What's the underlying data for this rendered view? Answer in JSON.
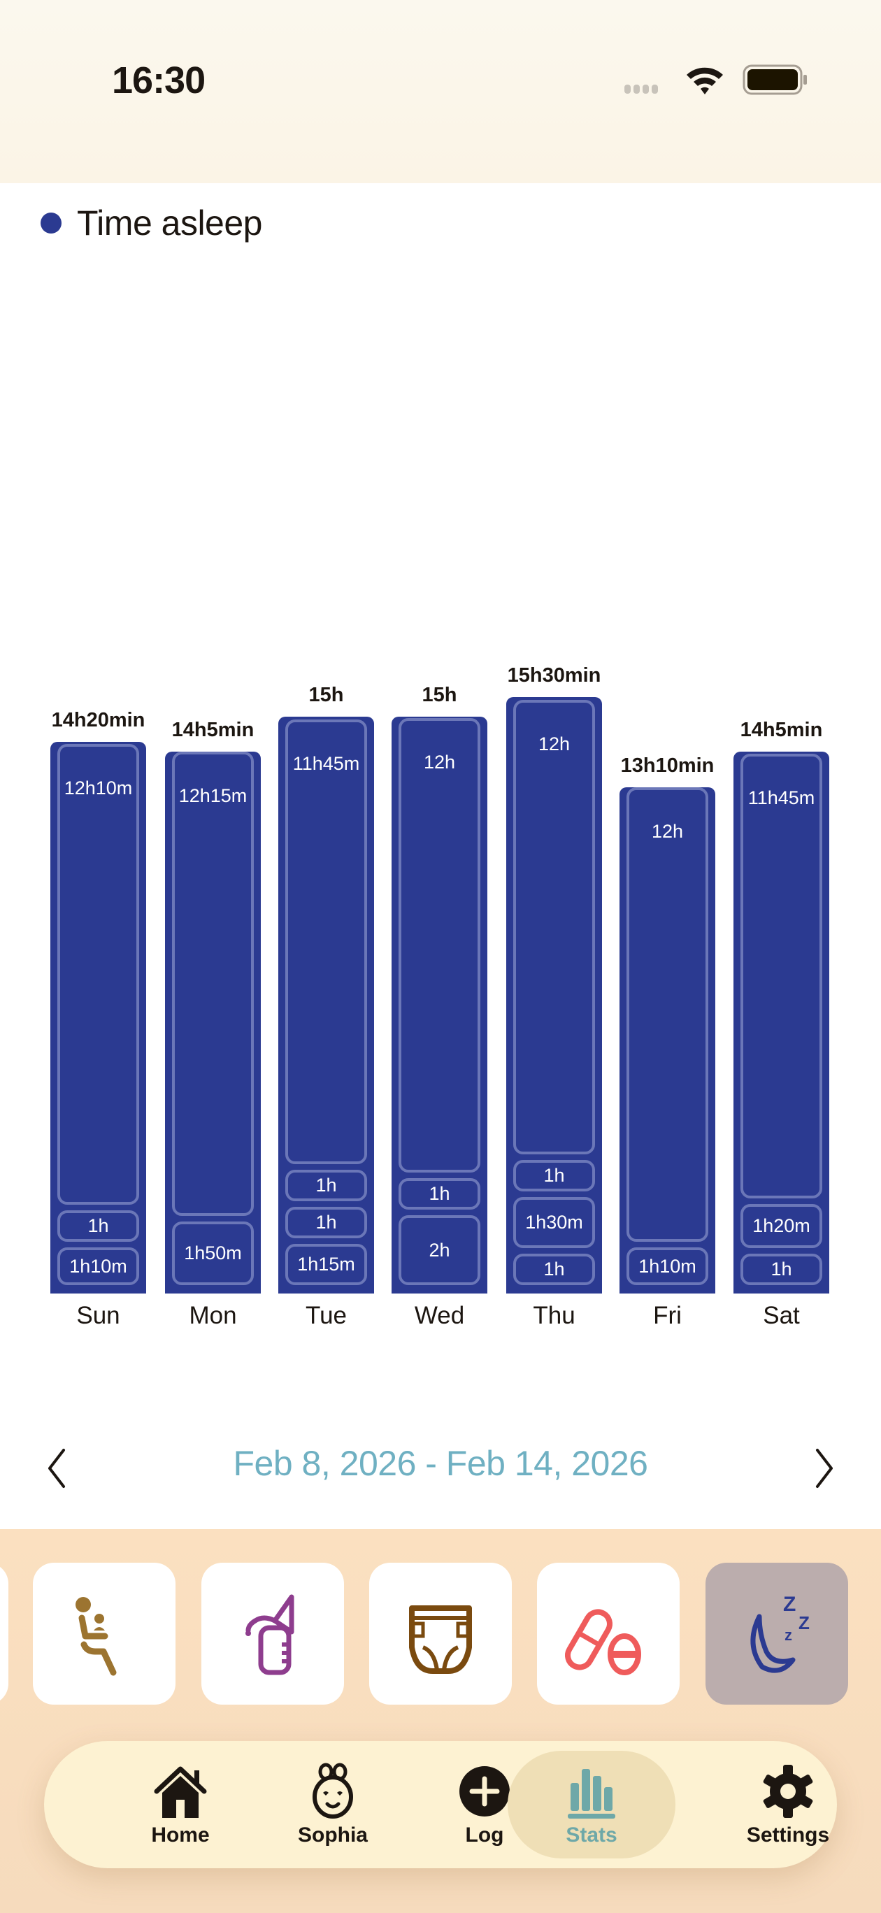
{
  "status_bar": {
    "time": "16:30"
  },
  "legend": {
    "label": "Time asleep",
    "color": "#2b3a91"
  },
  "chart_data": {
    "type": "bar",
    "stacked": true,
    "title": "",
    "legend": [
      "Time asleep"
    ],
    "categories": [
      "Sun",
      "Mon",
      "Tue",
      "Wed",
      "Thu",
      "Fri",
      "Sat"
    ],
    "totals": [
      "14h20min",
      "14h5min",
      "15h",
      "15h",
      "15h30min",
      "13h10min",
      "14h5min"
    ],
    "total_minutes": [
      860,
      845,
      900,
      900,
      930,
      790,
      845
    ],
    "segments_top_to_bottom": [
      [
        "12h10m",
        "1h",
        "1h10m"
      ],
      [
        "12h15m",
        "1h50m"
      ],
      [
        "11h45m",
        "1h",
        "1h",
        "1h15m"
      ],
      [
        "12h",
        "1h",
        "2h"
      ],
      [
        "12h",
        "1h",
        "1h30m",
        "1h"
      ],
      [
        "12h",
        "1h10m"
      ],
      [
        "11h45m",
        "1h20m",
        "1h"
      ]
    ],
    "segment_minutes_top_to_bottom": [
      [
        730,
        60,
        70
      ],
      [
        735,
        110
      ],
      [
        705,
        60,
        60,
        75
      ],
      [
        720,
        60,
        120
      ],
      [
        720,
        60,
        90,
        60
      ],
      [
        720,
        70
      ],
      [
        705,
        80,
        60
      ]
    ],
    "xlabel": "",
    "ylabel": "",
    "grid": false,
    "bar_color": "#2b3a91"
  },
  "days": [
    {
      "label": "Sun",
      "total": "14h20min",
      "segments": [
        {
          "label": "12h10m",
          "min": 730
        },
        {
          "label": "1h",
          "min": 60
        },
        {
          "label": "1h10m",
          "min": 70
        }
      ]
    },
    {
      "label": "Mon",
      "total": "14h5min",
      "segments": [
        {
          "label": "12h15m",
          "min": 735
        },
        {
          "label": "1h50m",
          "min": 110
        }
      ]
    },
    {
      "label": "Tue",
      "total": "15h",
      "segments": [
        {
          "label": "11h45m",
          "min": 705
        },
        {
          "label": "1h",
          "min": 60
        },
        {
          "label": "1h",
          "min": 60
        },
        {
          "label": "1h15m",
          "min": 75
        }
      ]
    },
    {
      "label": "Wed",
      "total": "15h",
      "segments": [
        {
          "label": "12h",
          "min": 720
        },
        {
          "label": "1h",
          "min": 60
        },
        {
          "label": "2h",
          "min": 120
        }
      ]
    },
    {
      "label": "Thu",
      "total": "15h30min",
      "segments": [
        {
          "label": "12h",
          "min": 720
        },
        {
          "label": "1h",
          "min": 60
        },
        {
          "label": "1h30m",
          "min": 90
        },
        {
          "label": "1h",
          "min": 60
        }
      ]
    },
    {
      "label": "Fri",
      "total": "13h10min",
      "segments": [
        {
          "label": "12h",
          "min": 720
        },
        {
          "label": "1h10m",
          "min": 70
        }
      ]
    },
    {
      "label": "Sat",
      "total": "14h5min",
      "segments": [
        {
          "label": "11h45m",
          "min": 705
        },
        {
          "label": "1h20m",
          "min": 80
        },
        {
          "label": "1h",
          "min": 60
        }
      ]
    }
  ],
  "date_nav": {
    "range": "Feb 8, 2026 - Feb 14, 2026",
    "prev": "previous-week",
    "next": "next-week"
  },
  "activity_tiles": [
    {
      "name": "feeding",
      "icon": "nursing-icon",
      "color": "#9c7430",
      "active": false
    },
    {
      "name": "pumping",
      "icon": "breast-pump-icon",
      "color": "#8e3d8e",
      "active": false
    },
    {
      "name": "diaper",
      "icon": "diaper-icon",
      "color": "#7a4a0f",
      "active": false
    },
    {
      "name": "medicine",
      "icon": "pill-icon",
      "color": "#ef5b5b",
      "active": false
    },
    {
      "name": "sleep",
      "icon": "moon-zzz-icon",
      "color": "#2b3a91",
      "active": true
    }
  ],
  "tabbar": {
    "tabs": [
      {
        "label": "Home",
        "icon": "house-icon",
        "active": false
      },
      {
        "label": "Sophia",
        "icon": "baby-face-icon",
        "active": false
      },
      {
        "label": "Log",
        "icon": "plus-circle-icon",
        "active": false
      },
      {
        "label": "Stats",
        "icon": "bar-chart-icon",
        "active": true
      },
      {
        "label": "Settings",
        "icon": "gear-icon",
        "active": false
      }
    ]
  },
  "colors": {
    "accent": "#6fb0c2",
    "stats_active": "#6ea8a8",
    "bar": "#2b3a91",
    "bar_outline": "#6b77b8"
  }
}
